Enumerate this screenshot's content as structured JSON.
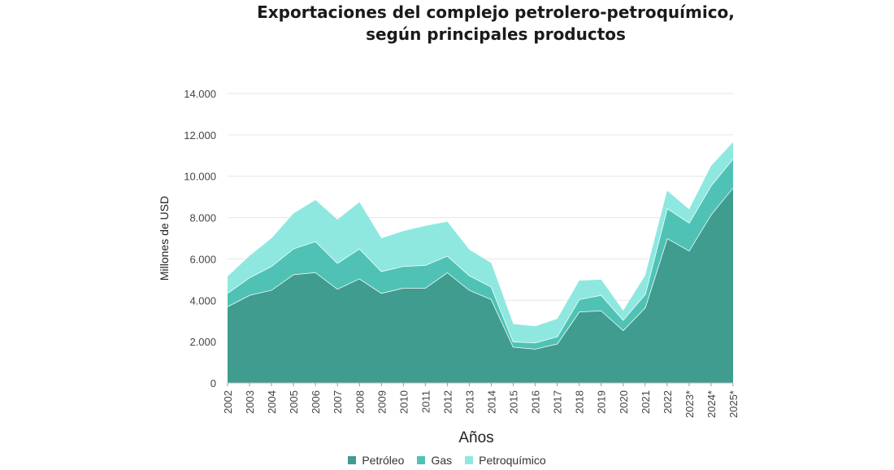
{
  "chart_data": {
    "type": "area",
    "stacked": true,
    "title": "Exportaciones del complejo petrolero-petroquímico,",
    "subtitle": "según principales productos",
    "xlabel": "Años",
    "ylabel": "Millones de USD",
    "ylim": [
      0,
      14000
    ],
    "yticks": [
      0,
      2000,
      4000,
      6000,
      8000,
      10000,
      12000,
      14000
    ],
    "ytick_labels": [
      "0",
      "2.000",
      "4.000",
      "6.000",
      "8.000",
      "10.000",
      "12.000",
      "14.000"
    ],
    "categories": [
      "2002",
      "2003",
      "2004",
      "2005",
      "2006",
      "2007",
      "2008",
      "2009",
      "2010",
      "2011",
      "2012",
      "2013",
      "2014",
      "2015",
      "2016",
      "2017",
      "2018",
      "2019",
      "2020",
      "2021",
      "2022",
      "2023*",
      "2024*",
      "2025*"
    ],
    "grid": true,
    "legend_position": "bottom",
    "series": [
      {
        "name": "Petróleo",
        "color": "#3f9c8f",
        "values": [
          3700,
          4250,
          4500,
          5250,
          5350,
          4550,
          5050,
          4350,
          4600,
          4600,
          5350,
          4500,
          4050,
          1750,
          1650,
          1900,
          3450,
          3500,
          2550,
          3650,
          7000,
          6400,
          8150,
          9450
        ]
      },
      {
        "name": "Gas",
        "color": "#4fc2b5",
        "values": [
          650,
          850,
          1150,
          1250,
          1500,
          1250,
          1450,
          1050,
          1050,
          1100,
          800,
          700,
          600,
          250,
          300,
          350,
          600,
          750,
          500,
          650,
          1450,
          1350,
          1400,
          1400
        ]
      },
      {
        "name": "Petroquímico",
        "color": "#8ee8e0",
        "values": [
          800,
          1050,
          1350,
          1700,
          2000,
          2100,
          2250,
          1600,
          1700,
          1900,
          1650,
          1250,
          1150,
          850,
          800,
          850,
          900,
          750,
          450,
          900,
          850,
          650,
          950,
          800
        ]
      }
    ]
  }
}
